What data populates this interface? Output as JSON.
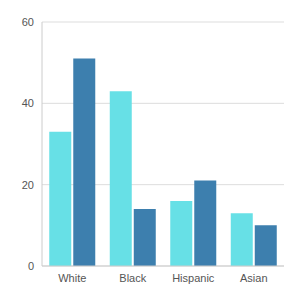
{
  "chart_data": {
    "type": "bar",
    "categories": [
      "White",
      "Black",
      "Hispanic",
      "Asian"
    ],
    "series": [
      {
        "color": "#67e0e6",
        "values": [
          33,
          43,
          16,
          13
        ]
      },
      {
        "color": "#3d7fae",
        "values": [
          51,
          14,
          21,
          10
        ]
      }
    ],
    "ylim": [
      0,
      60
    ],
    "yticks": [
      0,
      20,
      40,
      60
    ],
    "grid": true
  }
}
